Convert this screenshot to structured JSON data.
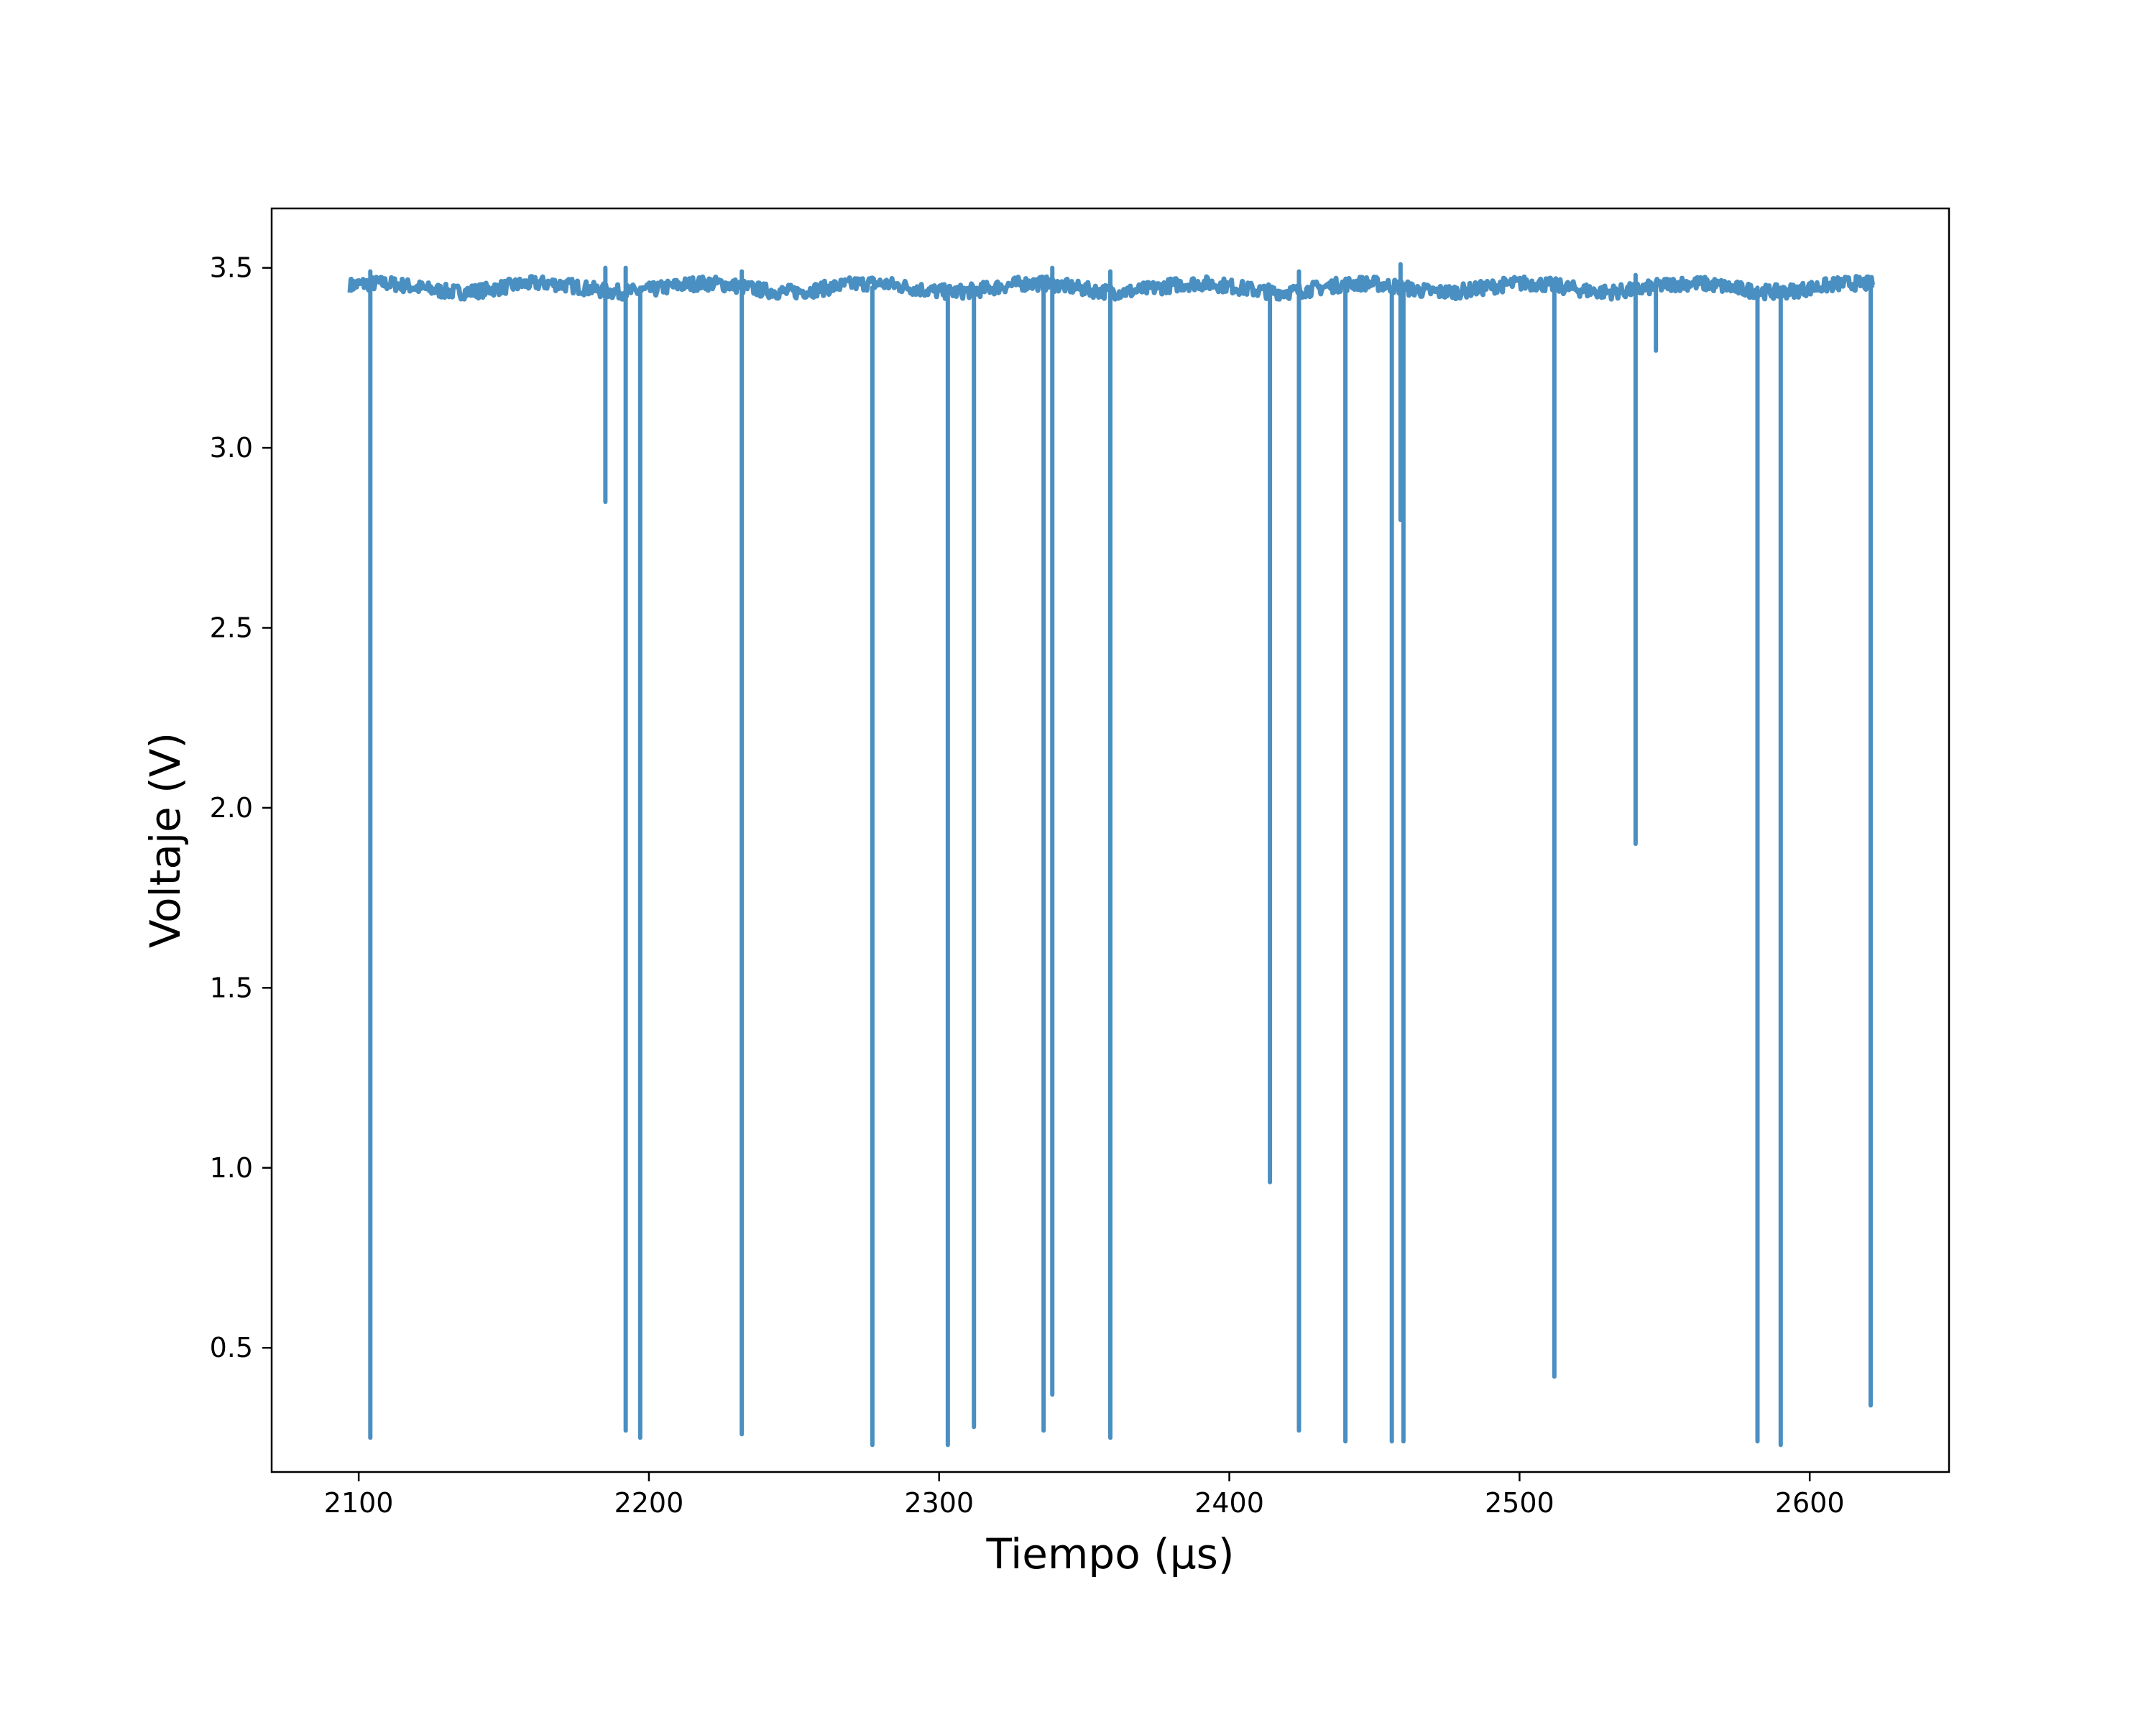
{
  "chart_data": {
    "type": "line",
    "title": "",
    "xlabel": "Tiempo (μs)",
    "ylabel": "Voltaje (V)",
    "xlim": [
      2070,
      2648
    ],
    "ylim": [
      0.155,
      3.665
    ],
    "xticks": [
      2100,
      2200,
      2300,
      2400,
      2500,
      2600
    ],
    "yticks": [
      0.5,
      1.0,
      1.5,
      2.0,
      2.5,
      3.0,
      3.5
    ],
    "xtick_labels": [
      "2100",
      "2200",
      "2300",
      "2400",
      "2500",
      "2600"
    ],
    "ytick_labels": [
      "0.5",
      "1.0",
      "1.5",
      "2.0",
      "2.5",
      "3.0",
      "3.5"
    ],
    "grid": false,
    "line_color": "#4a8fc1",
    "baseline": 3.445,
    "x_range": [
      2097,
      2622
    ],
    "dips": [
      {
        "x": 2104,
        "y": 0.25
      },
      {
        "x": 2185,
        "y": 2.85
      },
      {
        "x": 2192,
        "y": 0.27
      },
      {
        "x": 2197,
        "y": 0.25
      },
      {
        "x": 2232,
        "y": 0.26
      },
      {
        "x": 2277,
        "y": 0.23
      },
      {
        "x": 2303,
        "y": 0.23
      },
      {
        "x": 2312,
        "y": 0.28
      },
      {
        "x": 2336,
        "y": 0.27
      },
      {
        "x": 2339,
        "y": 0.37
      },
      {
        "x": 2359,
        "y": 0.25
      },
      {
        "x": 2414,
        "y": 0.96
      },
      {
        "x": 2424,
        "y": 0.27
      },
      {
        "x": 2440,
        "y": 0.24
      },
      {
        "x": 2456,
        "y": 0.24
      },
      {
        "x": 2459,
        "y": 2.8
      },
      {
        "x": 2460,
        "y": 0.24
      },
      {
        "x": 2512,
        "y": 0.42
      },
      {
        "x": 2540,
        "y": 1.9
      },
      {
        "x": 2547,
        "y": 3.27
      },
      {
        "x": 2582,
        "y": 0.24
      },
      {
        "x": 2590,
        "y": 0.23
      },
      {
        "x": 2621,
        "y": 0.34
      }
    ],
    "spikes": [
      {
        "x": 2104,
        "y": 3.49
      },
      {
        "x": 2185,
        "y": 3.5
      },
      {
        "x": 2192,
        "y": 3.5
      },
      {
        "x": 2232,
        "y": 3.49
      },
      {
        "x": 2339,
        "y": 3.5
      },
      {
        "x": 2359,
        "y": 3.49
      },
      {
        "x": 2424,
        "y": 3.49
      },
      {
        "x": 2459,
        "y": 3.51
      },
      {
        "x": 2540,
        "y": 3.48
      }
    ]
  }
}
